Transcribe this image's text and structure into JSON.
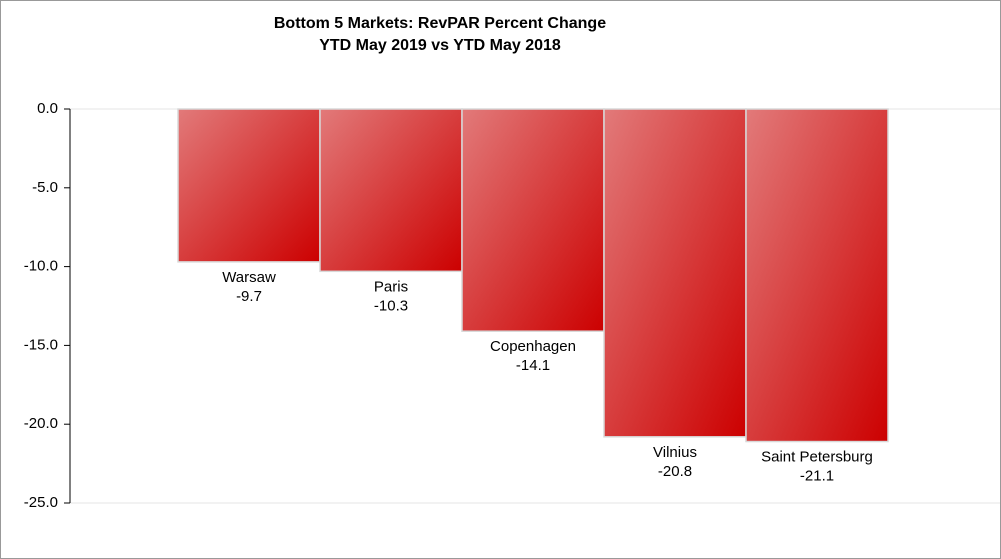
{
  "chart_data": {
    "type": "bar",
    "title": "Bottom 5 Markets: RevPAR Percent Change",
    "subtitle": "YTD May 2019 vs YTD May 2018",
    "categories": [
      "Warsaw",
      "Paris",
      "Copenhagen",
      "Vilnius",
      "Saint Petersburg"
    ],
    "values": [
      -9.7,
      -10.3,
      -14.1,
      -20.8,
      -21.1
    ],
    "color": "#cc0000",
    "ylim": [
      -25,
      0
    ],
    "yticks": [
      {
        "value": 0,
        "label": "0.0"
      },
      {
        "value": -5,
        "label": "-5.0"
      },
      {
        "value": -10,
        "label": "-10.0"
      },
      {
        "value": -15,
        "label": "-15.0"
      },
      {
        "value": -20,
        "label": "-20.0"
      },
      {
        "value": -25,
        "label": "-25.0"
      }
    ],
    "grid": false
  }
}
